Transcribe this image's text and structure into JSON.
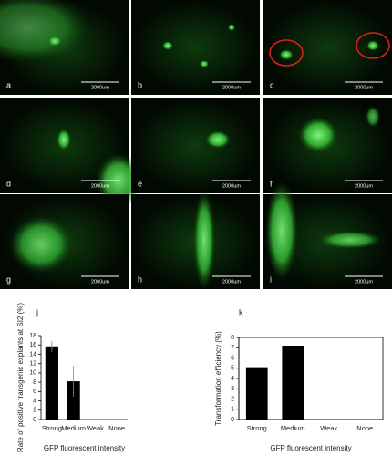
{
  "panels": [
    {
      "label": "a",
      "scale_bar": "2000um"
    },
    {
      "label": "b",
      "scale_bar": "2000um"
    },
    {
      "label": "c",
      "scale_bar": "2000um"
    },
    {
      "label": "d",
      "scale_bar": "2000um"
    },
    {
      "label": "e",
      "scale_bar": "2000um"
    },
    {
      "label": "f",
      "scale_bar": "2000um"
    },
    {
      "label": "g",
      "scale_bar": "2000um"
    },
    {
      "label": "h",
      "scale_bar": "2000um"
    },
    {
      "label": "i",
      "scale_bar": "2000um"
    }
  ],
  "chart_data": [
    {
      "type": "bar",
      "panel_label": "j",
      "y_label": "Rate of positive transgenic explants at SI2 (%)",
      "x_label": "GFP fluorescent intensity",
      "categories": [
        "Strong",
        "Medium",
        "Weak",
        "None"
      ],
      "values": [
        15.7,
        8.2,
        0,
        0
      ],
      "errors": [
        1.2,
        3.3,
        0,
        0
      ],
      "color": "#000000",
      "ylim": [
        0,
        18
      ],
      "yticks": [
        0,
        2,
        4,
        6,
        8,
        10,
        12,
        14,
        16,
        18
      ],
      "box": false
    },
    {
      "type": "bar",
      "panel_label": "k",
      "y_label": "Transformation efficiency (%)",
      "x_label": "GFP fluorescent intensity",
      "categories": [
        "Strong",
        "Medium",
        "Weak",
        "None"
      ],
      "values": [
        5.1,
        7.2,
        0,
        0
      ],
      "color": "#000000",
      "ylim": [
        0,
        8
      ],
      "yticks": [
        0,
        1,
        2,
        3,
        4,
        5,
        6,
        7,
        8
      ],
      "box": true
    }
  ]
}
